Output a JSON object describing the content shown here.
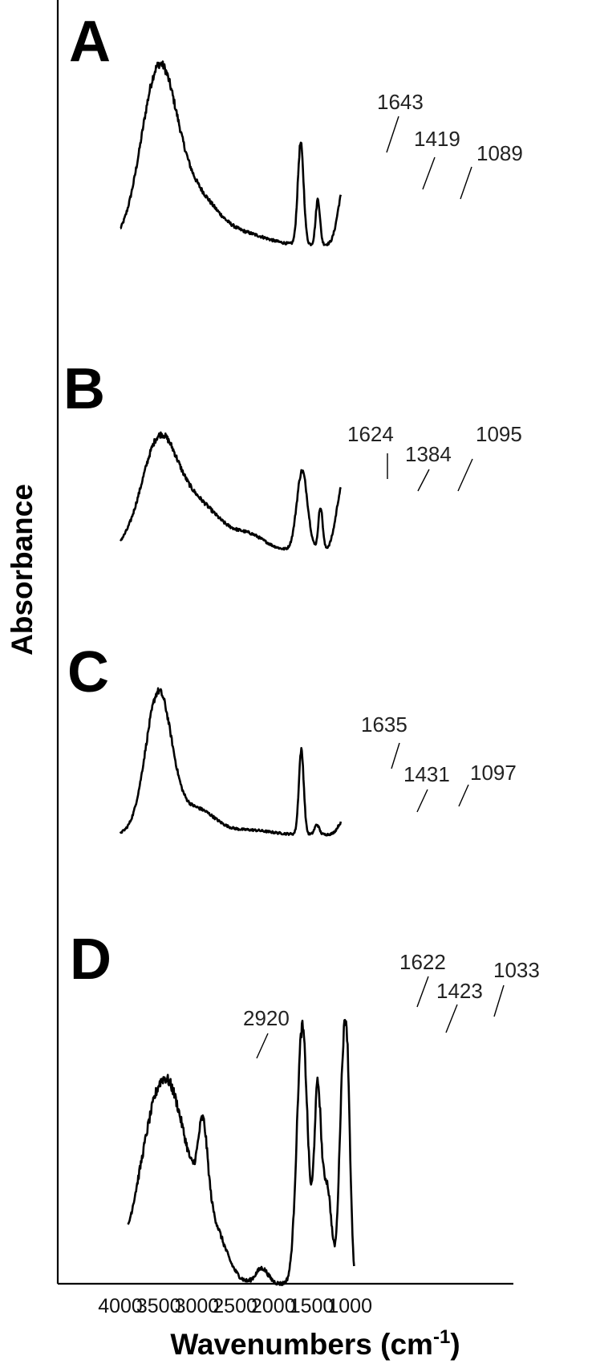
{
  "chart_data": {
    "type": "line",
    "xlabel": "Wavenumbers (cm",
    "xlabel_sup": "-1",
    "xlabel_close": ")",
    "ylabel": "Absorbance",
    "xlim": [
      4400,
      930
    ],
    "x_ticks": [
      4000,
      3500,
      3000,
      2500,
      2000,
      1500,
      1000
    ],
    "grid": false,
    "panels": [
      {
        "label": "A",
        "x_range": [
          4000,
          1120
        ],
        "peaks": [
          [
            3500,
            1.0,
            230
          ],
          [
            3000,
            0.28,
            300
          ],
          [
            2300,
            0.05,
            250
          ],
          [
            1643,
            0.6,
            38
          ],
          [
            1419,
            0.27,
            28
          ],
          [
            1089,
            0.32,
            70
          ]
        ],
        "annotations": [
          "1643",
          "1419",
          "1089"
        ]
      },
      {
        "label": "B",
        "x_range": [
          4000,
          1120
        ],
        "peaks": [
          [
            3500,
            0.7,
            230
          ],
          [
            3000,
            0.32,
            320
          ],
          [
            2300,
            0.09,
            200
          ],
          [
            1624,
            0.55,
            70
          ],
          [
            1384,
            0.3,
            28
          ],
          [
            1095,
            0.45,
            80
          ]
        ],
        "annotations": [
          "1624",
          "1384",
          "1095"
        ]
      },
      {
        "label": "C",
        "x_range": [
          4000,
          1120
        ],
        "peaks": [
          [
            3500,
            1.0,
            170
          ],
          [
            3000,
            0.18,
            240
          ],
          [
            2300,
            0.03,
            250
          ],
          [
            1635,
            0.6,
            32
          ],
          [
            1431,
            0.07,
            30
          ],
          [
            1097,
            0.09,
            60
          ]
        ],
        "annotations": [
          "1635",
          "1431",
          "1097"
        ]
      },
      {
        "label": "D",
        "x_range": [
          3900,
          945
        ],
        "peaks": [
          [
            3420,
            0.8,
            300
          ],
          [
            2920,
            0.3,
            60
          ],
          [
            2800,
            0.18,
            180
          ],
          [
            2150,
            0.06,
            80
          ],
          [
            1622,
            1.0,
            70
          ],
          [
            1423,
            0.72,
            45
          ],
          [
            1300,
            0.38,
            60
          ],
          [
            1100,
            0.68,
            45
          ],
          [
            1033,
            0.72,
            40
          ]
        ],
        "annotations": [
          "2920",
          "1622",
          "1423",
          "1033"
        ]
      }
    ]
  }
}
